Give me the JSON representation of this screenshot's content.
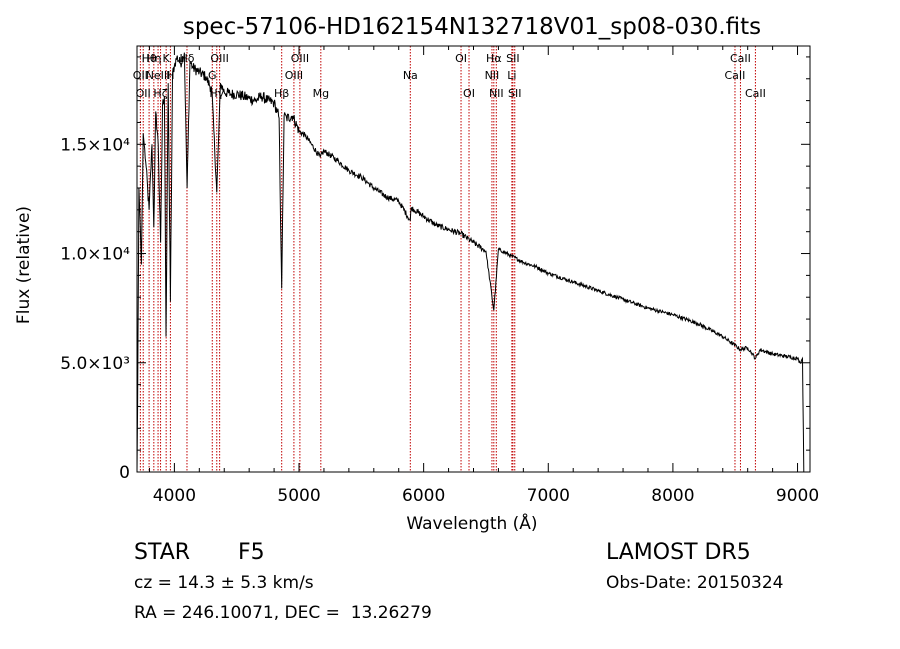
{
  "chart_data": {
    "type": "line",
    "title": "spec-57106-HD162154N132718V01_sp08-030.fits",
    "xlabel": "Wavelength (Å)",
    "ylabel": "Flux (relative)",
    "xlim": [
      3700,
      9100
    ],
    "ylim": [
      0,
      19500
    ],
    "xticks": [
      {
        "value": 4000,
        "label": "4000"
      },
      {
        "value": 5000,
        "label": "5000"
      },
      {
        "value": 6000,
        "label": "6000"
      },
      {
        "value": 7000,
        "label": "7000"
      },
      {
        "value": 8000,
        "label": "8000"
      },
      {
        "value": 9000,
        "label": "9000"
      }
    ],
    "yticks": [
      {
        "value": 0,
        "label": "0"
      },
      {
        "value": 5000,
        "label": "5.0×10³"
      },
      {
        "value": 10000,
        "label": "1.0×10⁴"
      },
      {
        "value": 15000,
        "label": "1.5×10⁴"
      }
    ],
    "line_color": "#000000",
    "marker_color": "#c00000",
    "spectrum": {
      "x": [
        3700,
        3705,
        3715,
        3725,
        3735,
        3750,
        3770,
        3797,
        3820,
        3835,
        3850,
        3870,
        3889,
        3905,
        3920,
        3933,
        3950,
        3968,
        3985,
        4000,
        4020,
        4050,
        4080,
        4102,
        4125,
        4150,
        4200,
        4250,
        4300,
        4340,
        4370,
        4400,
        4450,
        4500,
        4550,
        4600,
        4650,
        4700,
        4750,
        4800,
        4840,
        4861,
        4880,
        4900,
        4950,
        5000,
        5050,
        5100,
        5170,
        5200,
        5300,
        5400,
        5500,
        5600,
        5700,
        5800,
        5893,
        5900,
        6000,
        6100,
        6200,
        6300,
        6400,
        6500,
        6563,
        6600,
        6700,
        6800,
        6900,
        7000,
        7200,
        7400,
        7600,
        7800,
        8000,
        8200,
        8400,
        8498,
        8542,
        8600,
        8662,
        8700,
        8800,
        8900,
        9000,
        9020,
        9040,
        9050
      ],
      "y": [
        0,
        3000,
        13000,
        11500,
        9500,
        15500,
        14200,
        12000,
        15000,
        11200,
        16500,
        15000,
        10500,
        16800,
        17200,
        6200,
        17800,
        7800,
        18200,
        18600,
        19000,
        18700,
        19200,
        13000,
        18800,
        18500,
        18300,
        18100,
        17500,
        12800,
        17800,
        17400,
        17300,
        17300,
        17200,
        17100,
        17000,
        17200,
        17000,
        16900,
        16200,
        8400,
        16300,
        16200,
        16300,
        15600,
        15400,
        15000,
        14400,
        14700,
        14300,
        13800,
        13500,
        13000,
        12600,
        12400,
        11500,
        12100,
        11700,
        11300,
        11100,
        10900,
        10500,
        10100,
        7400,
        10200,
        9900,
        9600,
        9400,
        9100,
        8700,
        8300,
        7900,
        7500,
        7200,
        6800,
        6200,
        5800,
        5600,
        5700,
        5200,
        5600,
        5400,
        5300,
        5200,
        5000,
        5200,
        0
      ]
    },
    "lines": [
      {
        "x": 3797,
        "label": "Hθ",
        "row": 0
      },
      {
        "x": 3727,
        "label": "OII",
        "row": 1
      },
      {
        "x": 3750,
        "label": "OII",
        "row": 2
      },
      {
        "x": 3835,
        "label": "Hη",
        "row": 0
      },
      {
        "x": 3869,
        "label": "NeIII",
        "row": 1
      },
      {
        "x": 3889,
        "label": "Hζ",
        "row": 2
      },
      {
        "x": 3934,
        "label": "K",
        "row": 0
      },
      {
        "x": 3968,
        "label": "H",
        "row": 1
      },
      {
        "x": 4101,
        "label": "Hδ",
        "row": 0
      },
      {
        "x": 4304,
        "label": "G",
        "row": 1
      },
      {
        "x": 4340,
        "label": "Hγ",
        "row": 2
      },
      {
        "x": 4363,
        "label": "OIII",
        "row": 0
      },
      {
        "x": 4861,
        "label": "Hβ",
        "row": 2
      },
      {
        "x": 4959,
        "label": "OIII",
        "row": 1
      },
      {
        "x": 5007,
        "label": "OIII",
        "row": 0
      },
      {
        "x": 5175,
        "label": "Mg",
        "row": 2
      },
      {
        "x": 5893,
        "label": "Na",
        "row": 1
      },
      {
        "x": 6300,
        "label": "OI",
        "row": 0
      },
      {
        "x": 6364,
        "label": "OI",
        "row": 2
      },
      {
        "x": 6548,
        "label": "NII",
        "row": 1
      },
      {
        "x": 6563,
        "label": "Hα",
        "row": 0
      },
      {
        "x": 6583,
        "label": "NII",
        "row": 2
      },
      {
        "x": 6708,
        "label": "Li",
        "row": 1
      },
      {
        "x": 6716,
        "label": "SII",
        "row": 0
      },
      {
        "x": 6731,
        "label": "SII",
        "row": 2
      },
      {
        "x": 8498,
        "label": "CaII",
        "row": 1
      },
      {
        "x": 8542,
        "label": "CaII",
        "row": 0
      },
      {
        "x": 8662,
        "label": "CaII",
        "row": 2
      }
    ]
  },
  "info": {
    "class_label": "STAR",
    "subclass": "F5",
    "redshift": "cz = 14.3 ± 5.3 km/s",
    "coords": "RA = 246.10071, DEC =  13.26279",
    "survey": "LAMOST DR5",
    "obs_date": "Obs-Date: 20150324"
  }
}
